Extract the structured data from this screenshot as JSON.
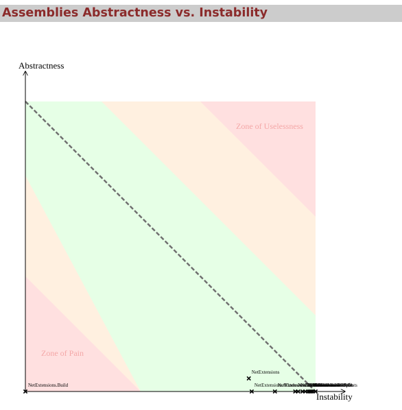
{
  "page": {
    "title": "Assemblies Abstractness vs. Instability"
  },
  "chart_data": {
    "type": "scatter",
    "title": "Assemblies Abstractness vs. Instability",
    "xlabel": "Instability",
    "ylabel": "Abstractness",
    "xlim": [
      0,
      1
    ],
    "ylim": [
      0,
      1
    ],
    "grid": false,
    "zones": [
      {
        "name": "Zone of Pain",
        "color": "#ffe0e0",
        "label_color": "#f4a7a7"
      },
      {
        "name": "Zone of Uselessness",
        "color": "#ffe0e0",
        "label_color": "#f4a7a7"
      }
    ],
    "band_colors": {
      "main_sequence": "#e6ffe6",
      "transition": "#fff0e0",
      "danger": "#ffe0e0",
      "diagonal": "#707070"
    },
    "points": [
      {
        "label": "NetExtensions.Build",
        "x": 0.0,
        "y": 0.0
      },
      {
        "label": "NetExtensions",
        "x": 0.77,
        "y": 0.045
      },
      {
        "label": "NetExtensions.Windows",
        "x": 0.78,
        "y": 0.0
      },
      {
        "label": "NetExtensions.Media",
        "x": 0.86,
        "y": 0.0
      },
      {
        "label": "NetExtensions.Net",
        "x": 0.93,
        "y": 0.0
      },
      {
        "label": "NetExtensions.Xml",
        "x": 0.94,
        "y": 0.0
      },
      {
        "label": "NetExtensions.IO",
        "x": 0.955,
        "y": 0.0
      },
      {
        "label": "NetExtensions.Data",
        "x": 0.965,
        "y": 0.0
      },
      {
        "label": "NetExtensions.Forms",
        "x": 0.975,
        "y": 0.0
      },
      {
        "label": "NetExtensions.Wpf",
        "x": 0.98,
        "y": 0.0
      },
      {
        "label": "NetExtensions.Text",
        "x": 0.985,
        "y": 0.0
      },
      {
        "label": "NetExtensions.Web",
        "x": 0.99,
        "y": 0.0
      },
      {
        "label": "NetExtensions.Tests",
        "x": 1.0,
        "y": 0.0
      }
    ]
  }
}
